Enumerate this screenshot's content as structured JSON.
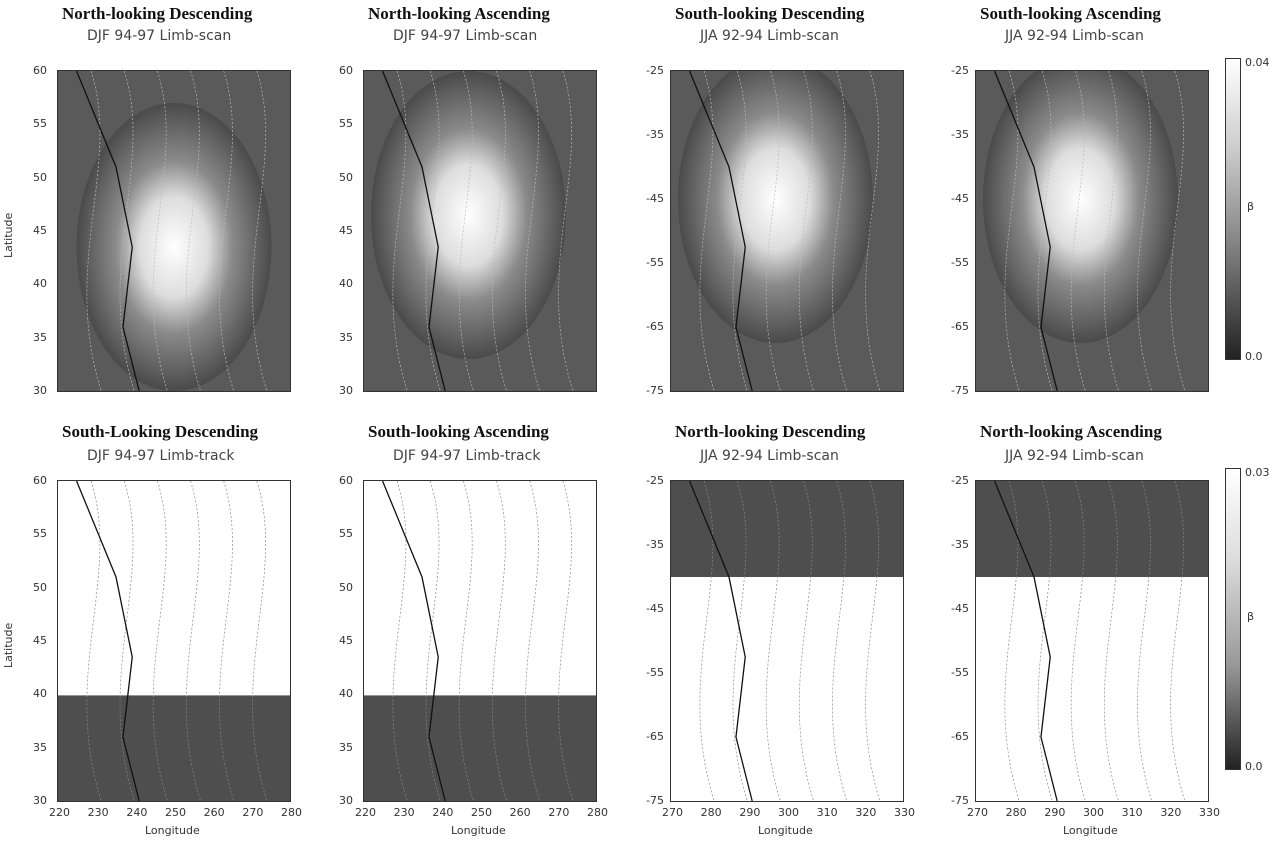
{
  "panels": [
    {
      "title": "North-looking Descending",
      "subtitle": "DJF 94-97 Limb-scan",
      "yticks": [
        "60",
        "55",
        "50",
        "45",
        "40",
        "35",
        "30"
      ],
      "xticks": []
    },
    {
      "title": "North-looking Ascending",
      "subtitle": "DJF 94-97 Limb-scan",
      "yticks": [
        "60",
        "55",
        "50",
        "45",
        "40",
        "35",
        "30"
      ],
      "xticks": []
    },
    {
      "title": "South-looking Descending",
      "subtitle": "JJA 92-94 Limb-scan",
      "yticks": [
        "-25",
        "-35",
        "-45",
        "-55",
        "-65",
        "-75"
      ],
      "xticks": []
    },
    {
      "title": "South-looking Ascending",
      "subtitle": "JJA 92-94 Limb-scan",
      "yticks": [
        "-25",
        "-35",
        "-45",
        "-55",
        "-65",
        "-75"
      ],
      "xticks": []
    },
    {
      "title": "South-Looking Descending",
      "subtitle": "DJF 94-97 Limb-track",
      "yticks": [
        "60",
        "55",
        "50",
        "45",
        "40",
        "35",
        "30"
      ],
      "xticks": [
        "220",
        "230",
        "240",
        "250",
        "260",
        "270",
        "280"
      ]
    },
    {
      "title": "South-looking Ascending",
      "subtitle": "DJF 94-97 Limb-track",
      "yticks": [
        "60",
        "55",
        "50",
        "45",
        "40",
        "35",
        "30"
      ],
      "xticks": [
        "220",
        "230",
        "240",
        "250",
        "260",
        "270",
        "280"
      ]
    },
    {
      "title": "North-looking Descending",
      "subtitle": "JJA 92-94 Limb-scan",
      "yticks": [
        "-25",
        "-35",
        "-45",
        "-55",
        "-65",
        "-75"
      ],
      "xticks": [
        "270",
        "280",
        "290",
        "300",
        "310",
        "320",
        "330"
      ]
    },
    {
      "title": "North-looking Ascending",
      "subtitle": "JJA 92-94 Limb-scan",
      "yticks": [
        "-25",
        "-35",
        "-45",
        "-55",
        "-65",
        "-75"
      ],
      "xticks": [
        "270",
        "280",
        "290",
        "300",
        "310",
        "320",
        "330"
      ]
    }
  ],
  "axes": {
    "ylabel": "Latitude",
    "xlabel": "Longitude"
  },
  "colorbars": [
    {
      "max": "0.04",
      "min": "0.0",
      "label": "β"
    },
    {
      "max": "0.03",
      "min": "0.0",
      "label": "β"
    }
  ]
}
